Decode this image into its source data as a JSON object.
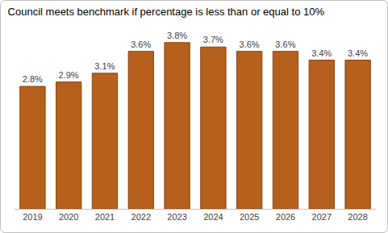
{
  "chart_data": {
    "type": "bar",
    "title": "Council meets benchmark if percentage is less than or equal to 10%",
    "categories": [
      "2019",
      "2020",
      "2021",
      "2022",
      "2023",
      "2024",
      "2025",
      "2026",
      "2027",
      "2028"
    ],
    "values": [
      2.8,
      2.9,
      3.1,
      3.6,
      3.8,
      3.7,
      3.6,
      3.6,
      3.4,
      3.4
    ],
    "value_labels": [
      "2.8%",
      "2.9%",
      "3.1%",
      "3.6%",
      "3.8%",
      "3.7%",
      "3.6%",
      "3.6%",
      "3.4%",
      "3.4%"
    ],
    "color": "#b5601c",
    "ylim": [
      0,
      4
    ],
    "grid": false,
    "data_labels": true,
    "tick_labels": "x"
  }
}
